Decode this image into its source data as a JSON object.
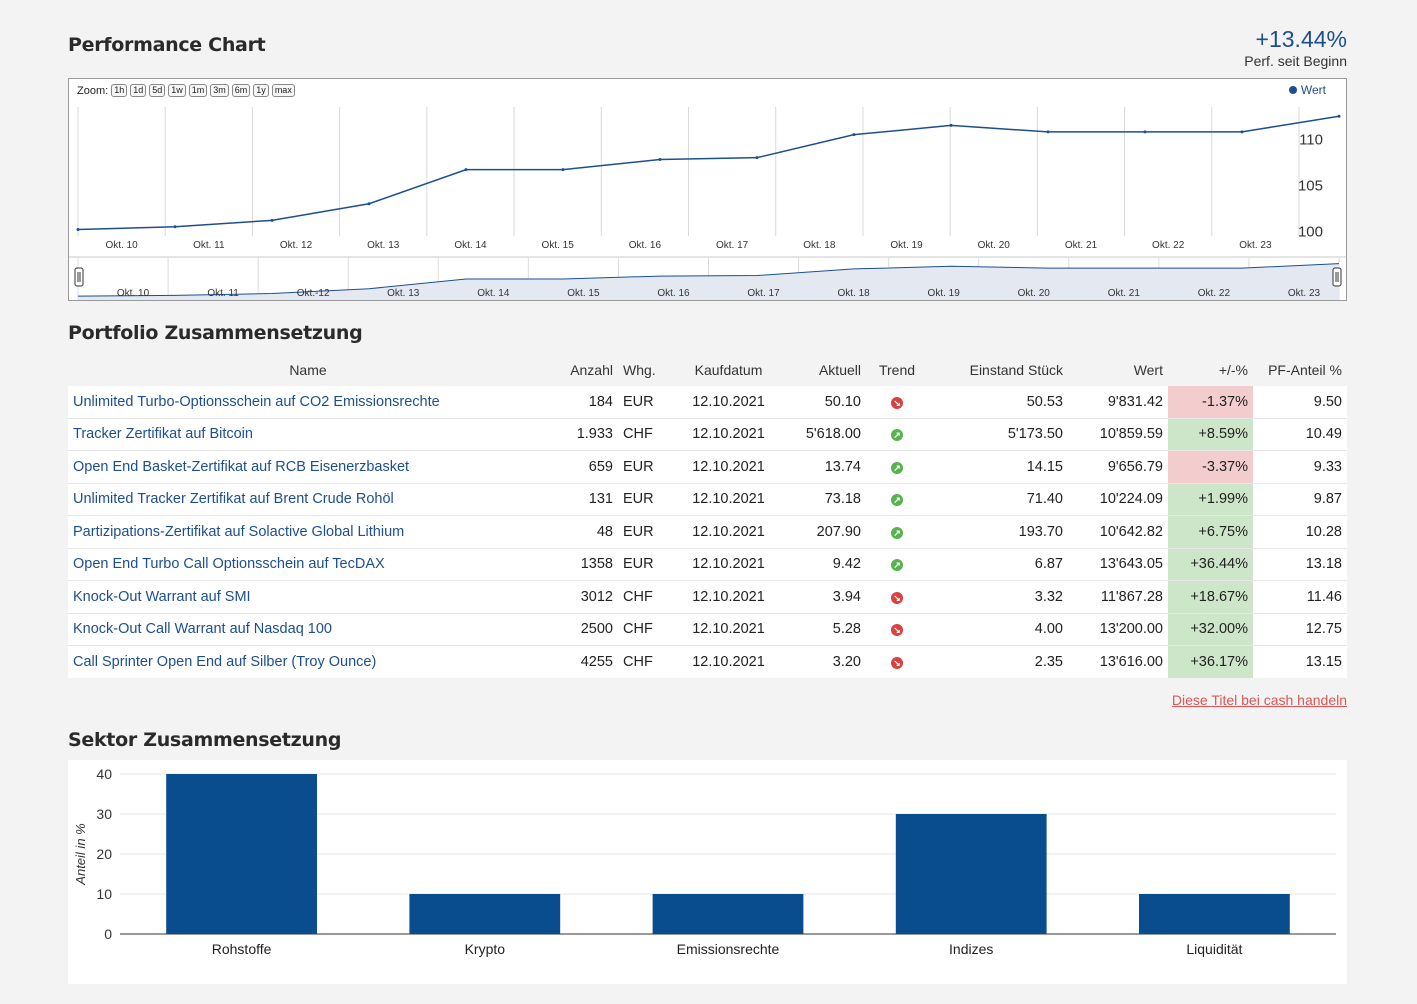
{
  "performance": {
    "title": "Performance Chart",
    "change_value": "+13.44%",
    "change_label": "Perf. seit Beginn",
    "zoom_label": "Zoom:",
    "zoom_options": [
      "1h",
      "1d",
      "5d",
      "1w",
      "1m",
      "3m",
      "6m",
      "1y",
      "max"
    ],
    "legend_label": "Wert",
    "navigator_dates": [
      "Okt. 10",
      "Okt. 11",
      "Okt.-12",
      "Okt. 13",
      "Okt. 14",
      "Okt. 15",
      "Okt. 16",
      "Okt. 17",
      "Okt. 18",
      "Okt. 19",
      "Okt. 20",
      "Okt. 21",
      "Okt. 22",
      "Okt. 23"
    ],
    "chart_data": {
      "type": "line",
      "x": [
        "Okt. 10",
        "Okt. 11",
        "Okt. 12",
        "Okt. 13",
        "Okt. 14",
        "Okt. 15",
        "Okt. 16",
        "Okt. 17",
        "Okt. 18",
        "Okt. 19",
        "Okt. 20",
        "Okt. 21",
        "Okt. 22",
        "Okt. 23"
      ],
      "series": [
        {
          "name": "Wert",
          "values": [
            100.2,
            100.5,
            101.2,
            103.0,
            106.7,
            106.7,
            107.8,
            108.0,
            110.5,
            111.5,
            110.8,
            110.8,
            110.8,
            112.5
          ]
        }
      ],
      "y_ticks": [
        100,
        105,
        110
      ],
      "ylim": [
        99.5,
        113.5
      ],
      "grid": true,
      "legend_position": "top-right",
      "color": "#1d4f8f"
    }
  },
  "portfolio": {
    "title": "Portfolio Zusammensetzung",
    "headers": [
      "Name",
      "Anzahl",
      "Whg.",
      "Kaufdatum",
      "Aktuell",
      "Trend",
      "Einstand Stück",
      "Wert",
      "+/-%",
      "PF-Anteil %"
    ],
    "rows": [
      {
        "name": "Unlimited Turbo-Optionsschein auf CO2 Emissionsrechte",
        "anzahl": "184",
        "whg": "EUR",
        "kaufdatum": "12.10.2021",
        "aktuell": "50.10",
        "trend": "down",
        "einstand": "50.53",
        "wert": "9'831.42",
        "change": "-1.37%",
        "anteil": "9.50"
      },
      {
        "name": "Tracker Zertifikat auf Bitcoin",
        "anzahl": "1.933",
        "whg": "CHF",
        "kaufdatum": "12.10.2021",
        "aktuell": "5'618.00",
        "trend": "up",
        "einstand": "5'173.50",
        "wert": "10'859.59",
        "change": "+8.59%",
        "anteil": "10.49"
      },
      {
        "name": "Open End Basket-Zertifikat auf RCB Eisenerzbasket",
        "anzahl": "659",
        "whg": "EUR",
        "kaufdatum": "12.10.2021",
        "aktuell": "13.74",
        "trend": "up",
        "einstand": "14.15",
        "wert": "9'656.79",
        "change": "-3.37%",
        "anteil": "9.33"
      },
      {
        "name": "Unlimited Tracker Zertifikat auf Brent Crude Rohöl",
        "anzahl": "131",
        "whg": "EUR",
        "kaufdatum": "12.10.2021",
        "aktuell": "73.18",
        "trend": "up",
        "einstand": "71.40",
        "wert": "10'224.09",
        "change": "+1.99%",
        "anteil": "9.87"
      },
      {
        "name": "Partizipations-Zertifikat auf Solactive Global Lithium",
        "anzahl": "48",
        "whg": "EUR",
        "kaufdatum": "12.10.2021",
        "aktuell": "207.90",
        "trend": "up",
        "einstand": "193.70",
        "wert": "10'642.82",
        "change": "+6.75%",
        "anteil": "10.28"
      },
      {
        "name": "Open End Turbo Call Optionsschein auf TecDAX",
        "anzahl": "1358",
        "whg": "EUR",
        "kaufdatum": "12.10.2021",
        "aktuell": "9.42",
        "trend": "up",
        "einstand": "6.87",
        "wert": "13'643.05",
        "change": "+36.44%",
        "anteil": "13.18"
      },
      {
        "name": "Knock-Out Warrant auf SMI",
        "anzahl": "3012",
        "whg": "CHF",
        "kaufdatum": "12.10.2021",
        "aktuell": "3.94",
        "trend": "down",
        "einstand": "3.32",
        "wert": "11'867.28",
        "change": "+18.67%",
        "anteil": "11.46"
      },
      {
        "name": "Knock-Out Call Warrant auf Nasdaq 100",
        "anzahl": "2500",
        "whg": "CHF",
        "kaufdatum": "12.10.2021",
        "aktuell": "5.28",
        "trend": "down",
        "einstand": "4.00",
        "wert": "13'200.00",
        "change": "+32.00%",
        "anteil": "12.75"
      },
      {
        "name": "Call Sprinter Open End auf Silber (Troy Ounce)",
        "anzahl": "4255",
        "whg": "CHF",
        "kaufdatum": "12.10.2021",
        "aktuell": "3.20",
        "trend": "down",
        "einstand": "2.35",
        "wert": "13'616.00",
        "change": "+36.17%",
        "anteil": "13.15"
      }
    ],
    "cash_link": "Diese Titel bei cash handeln",
    "colors": {
      "positive_bg": "#cde5c8",
      "negative_bg": "#f3cdcd",
      "link": "#1d4f8f"
    }
  },
  "sector": {
    "title": "Sektor Zusammensetzung",
    "chart_data": {
      "type": "bar",
      "categories": [
        "Rohstoffe",
        "Krypto",
        "Emissionsrechte",
        "Indizes",
        "Liquidität"
      ],
      "values": [
        40,
        10,
        10,
        30,
        10
      ],
      "ylabel": "Anteil in %",
      "y_ticks": [
        0,
        10,
        20,
        30,
        40
      ],
      "ylim": [
        0,
        40
      ],
      "grid": true,
      "color": "#0a4d8f"
    }
  }
}
